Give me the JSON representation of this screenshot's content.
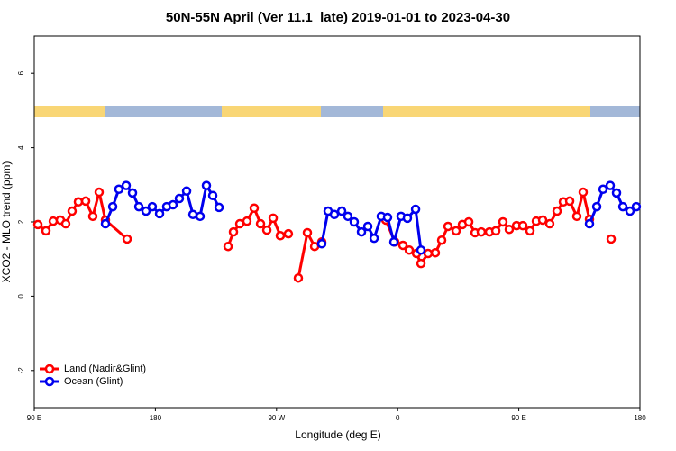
{
  "chart_data": {
    "type": "line",
    "title": "50N-55N April (Ver 11.1_late)   2019-01-01 to 2023-04-30",
    "x_label": "Longitude (deg E)",
    "y_label": "XCO2 - MLO trend (ppm)",
    "xlim": [
      90,
      540
    ],
    "xticks": [
      {
        "value": 90,
        "label": "90 E"
      },
      180,
      {
        "value": 270,
        "label": "90 W"
      },
      {
        "value": 360,
        "label": "0"
      },
      {
        "value": 450,
        "label": "90 E"
      },
      {
        "value": 540,
        "label": "180"
      }
    ],
    "ylim": [
      -3,
      7
    ],
    "yticks": [
      -2,
      0,
      2,
      4,
      6
    ],
    "legend": "bottom-left",
    "series": [
      {
        "name": "Land (Nadir&Glint)",
        "color": "#ff0000",
        "x": [
          92.7,
          98.7,
          104.1,
          109.4,
          113.4,
          118.1,
          122.8,
          128.2,
          133.5,
          138.2,
          142.9,
          159.0,
          null,
          234.0,
          238.0,
          242.7,
          248.0,
          253.4,
          258.1,
          262.8,
          267.5,
          272.8,
          278.8,
          null,
          286.2,
          292.9,
          298.3,
          303.6,
          null,
          351.2,
          357.9,
          363.9,
          368.6,
          374.0,
          377.3,
          382.6,
          388.0,
          392.7,
          397.4,
          403.4,
          408.1,
          412.8,
          417.5,
          422.1,
          428.2,
          432.9,
          438.2,
          442.9,
          448.3,
          453.0,
          458.3,
          463.0,
          467.7,
          473.0,
          478.4,
          483.1,
          487.8,
          493.1,
          497.8,
          502.5,
          null,
          518.6
        ],
        "values": [
          1.93,
          1.76,
          2.02,
          2.05,
          1.95,
          2.29,
          2.54,
          2.56,
          2.15,
          2.8,
          2.05,
          1.54,
          null,
          1.34,
          1.73,
          1.95,
          2.02,
          2.37,
          1.95,
          1.78,
          2.1,
          1.63,
          1.68,
          null,
          0.49,
          1.71,
          1.34,
          1.46,
          null,
          2.05,
          1.46,
          1.37,
          1.24,
          1.15,
          0.88,
          1.15,
          1.17,
          1.51,
          1.88,
          1.76,
          1.93,
          2.0,
          1.71,
          1.73,
          1.73,
          1.76,
          2.0,
          1.8,
          1.9,
          1.9,
          1.76,
          2.02,
          2.05,
          1.95,
          2.29,
          2.54,
          2.56,
          2.15,
          2.8,
          2.07,
          null,
          1.54
        ]
      },
      {
        "name": "Ocean (Glint)",
        "color": "#0000ee",
        "x": [
          142.9,
          148.3,
          152.9,
          158.3,
          163.0,
          167.7,
          173.0,
          177.7,
          183.1,
          188.4,
          193.1,
          197.8,
          203.2,
          207.9,
          213.2,
          217.9,
          222.6,
          227.3,
          null,
          303.6,
          308.3,
          313.0,
          318.4,
          323.0,
          327.7,
          333.1,
          337.8,
          342.5,
          347.8,
          352.5,
          357.2,
          362.5,
          367.2,
          373.3,
          377.3,
          null,
          502.5,
          507.9,
          512.6,
          517.9,
          522.6,
          527.3,
          532.6,
          537.3
        ],
        "values": [
          1.95,
          2.41,
          2.88,
          2.98,
          2.78,
          2.41,
          2.29,
          2.41,
          2.22,
          2.41,
          2.46,
          2.63,
          2.83,
          2.2,
          2.15,
          2.98,
          2.71,
          2.39,
          null,
          1.41,
          2.29,
          2.2,
          2.29,
          2.15,
          2.0,
          1.73,
          1.88,
          1.56,
          2.15,
          2.12,
          1.46,
          2.15,
          2.1,
          2.34,
          1.24,
          null,
          1.95,
          2.41,
          2.88,
          2.98,
          2.78,
          2.41,
          2.29,
          2.41
        ]
      }
    ]
  }
}
